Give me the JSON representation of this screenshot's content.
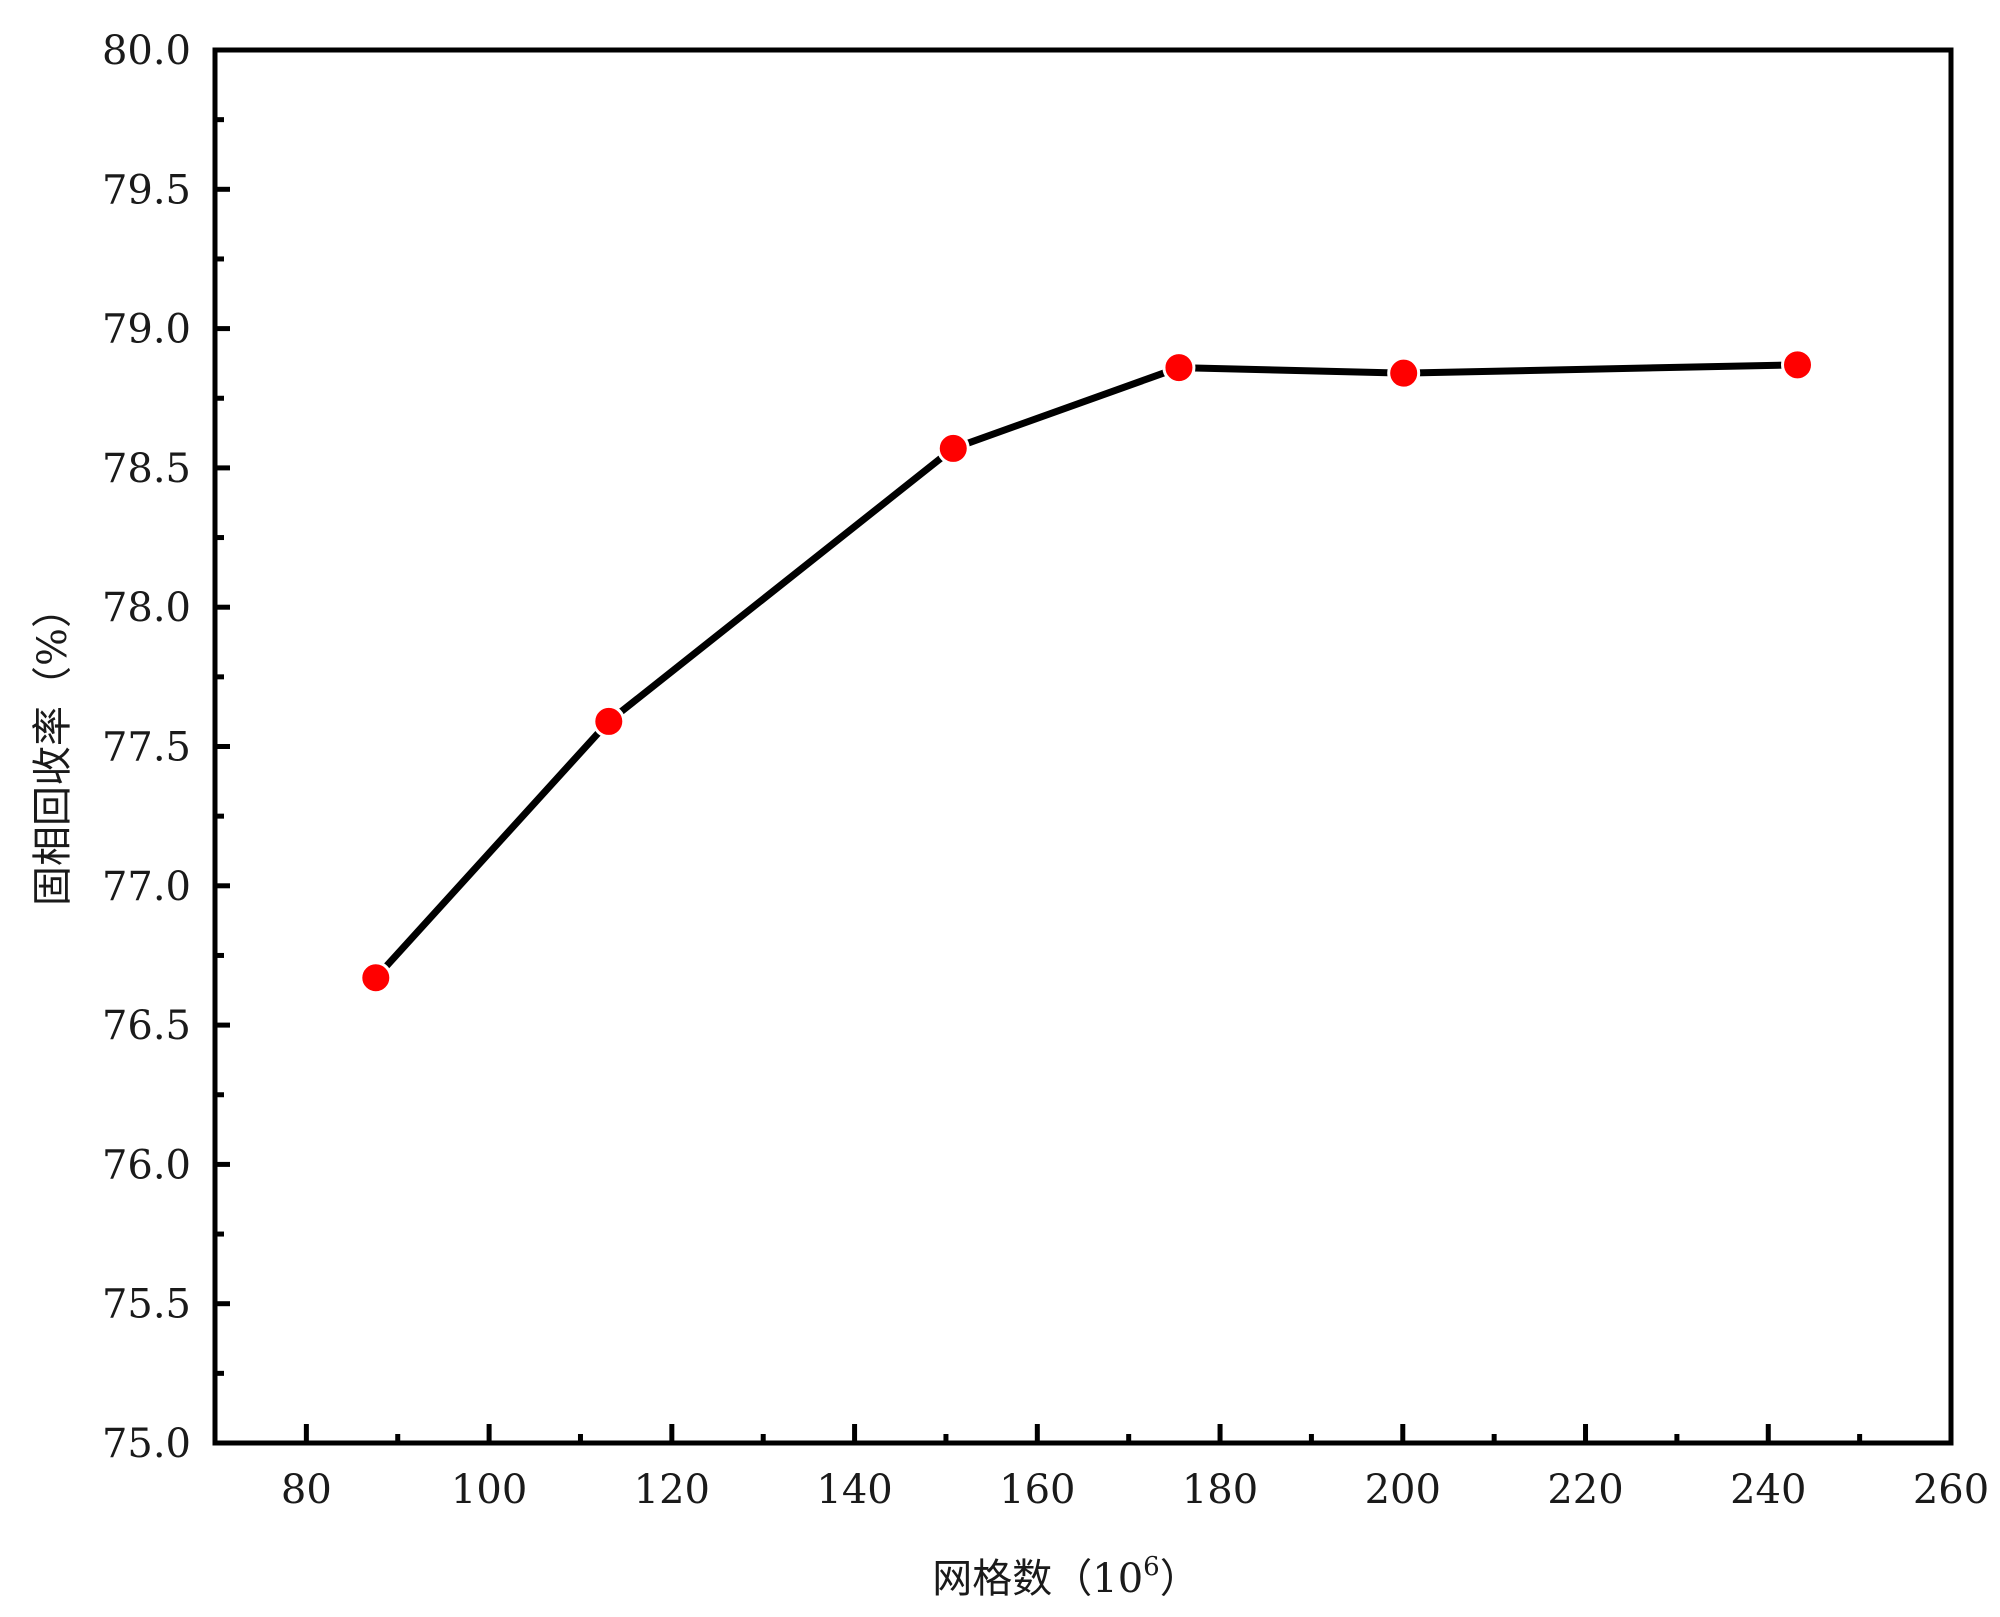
{
  "chart_data": {
    "type": "line",
    "title": "",
    "xlabel": "网格数（10",
    "xlabel_superscript": "6",
    "xlabel_suffix": "）",
    "ylabel": "固相回收率（%）",
    "xlim": [
      70,
      260
    ],
    "ylim": [
      75.0,
      80.0
    ],
    "x_ticks": [
      80,
      100,
      120,
      140,
      160,
      180,
      200,
      220,
      240,
      260
    ],
    "x_tick_labels": [
      "80",
      "100",
      "120",
      "140",
      "160",
      "180",
      "200",
      "220",
      "240",
      "260"
    ],
    "y_ticks": [
      75.0,
      75.5,
      76.0,
      76.5,
      77.0,
      77.5,
      78.0,
      78.5,
      79.0,
      79.5,
      80.0
    ],
    "y_tick_labels": [
      "75.0",
      "75.5",
      "76.0",
      "76.5",
      "77.0",
      "77.5",
      "78.0",
      "78.5",
      "79.0",
      "79.5",
      "80.0"
    ],
    "grid": false,
    "legend": "none",
    "series": [
      {
        "x": [
          87.6,
          113.1,
          150.8,
          175.5,
          200.1,
          243.2
        ],
        "y": [
          76.67,
          77.59,
          78.57,
          78.86,
          78.84,
          78.87
        ],
        "line_color": "#000000",
        "marker_color": "#ff0000",
        "marker_edge_color": "#ffffff"
      }
    ]
  }
}
